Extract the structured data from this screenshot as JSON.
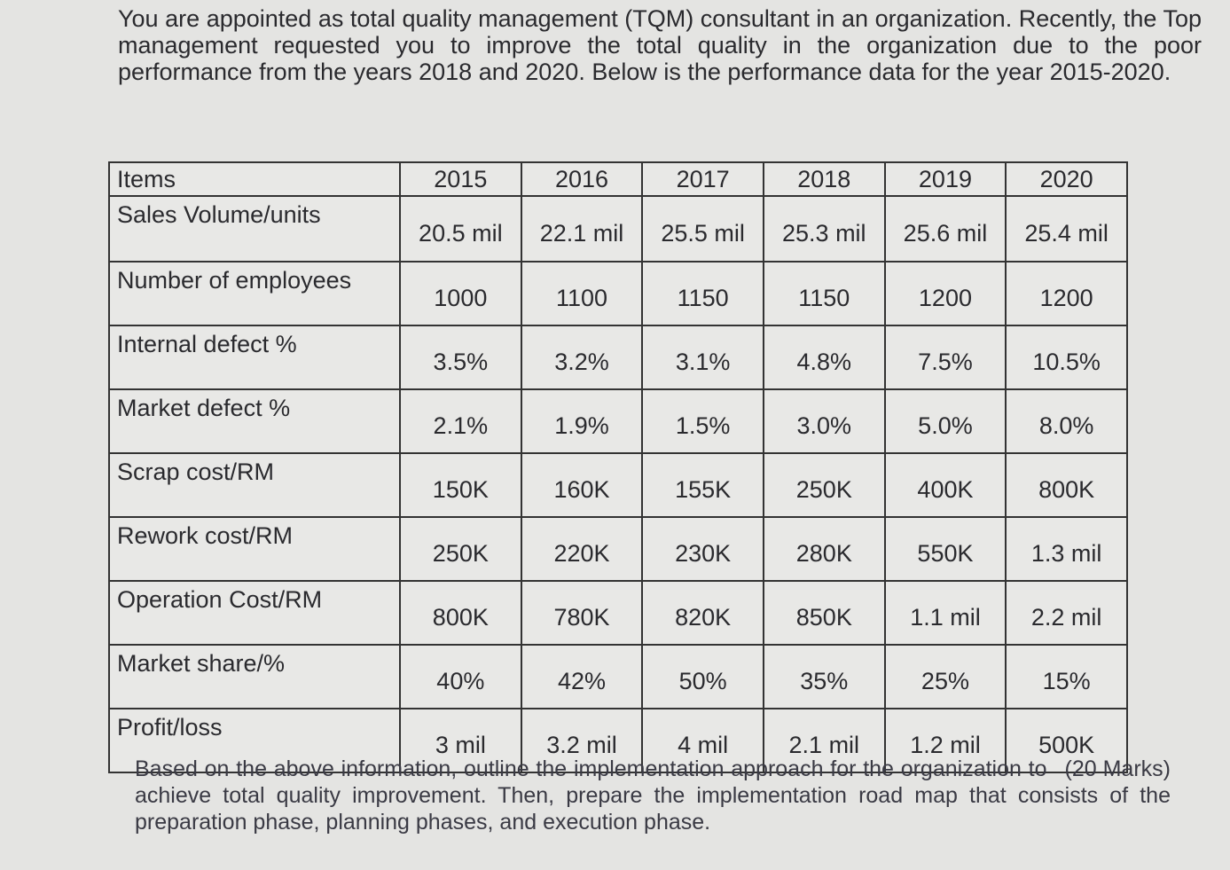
{
  "intro": "You are appointed as total quality management (TQM) consultant in an organization. Recently, the Top management requested you to improve the total quality in the organization due to the poor performance from the years 2018 and 2020. Below is the performance data for the year 2015-2020.",
  "table": {
    "header_label": "Items",
    "years": [
      "2015",
      "2016",
      "2017",
      "2018",
      "2019",
      "2020"
    ],
    "rows": [
      {
        "label": "Sales Volume/units",
        "values": [
          "20.5 mil",
          "22.1 mil",
          "25.5 mil",
          "25.3 mil",
          "25.6 mil",
          "25.4 mil"
        ]
      },
      {
        "label": "Number of employees",
        "values": [
          "1000",
          "1100",
          "1150",
          "1150",
          "1200",
          "1200"
        ]
      },
      {
        "label": "Internal defect %",
        "values": [
          "3.5%",
          "3.2%",
          "3.1%",
          "4.8%",
          "7.5%",
          "10.5%"
        ]
      },
      {
        "label": "Market defect %",
        "values": [
          "2.1%",
          "1.9%",
          "1.5%",
          "3.0%",
          "5.0%",
          "8.0%"
        ]
      },
      {
        "label": "Scrap cost/RM",
        "values": [
          "150K",
          "160K",
          "155K",
          "250K",
          "400K",
          "800K"
        ]
      },
      {
        "label": "Rework cost/RM",
        "values": [
          "250K",
          "220K",
          "230K",
          "280K",
          "550K",
          "1.3 mil"
        ]
      },
      {
        "label": "Operation Cost/RM",
        "values": [
          "800K",
          "780K",
          "820K",
          "850K",
          "1.1 mil",
          "2.2 mil"
        ]
      },
      {
        "label": "Market share/%",
        "values": [
          "40%",
          "42%",
          "50%",
          "35%",
          "25%",
          "15%"
        ]
      },
      {
        "label": "Profit/loss",
        "values": [
          "3 mil",
          "3.2 mil",
          "4 mil",
          "2.1 mil",
          "1.2 mil",
          "500K"
        ]
      }
    ]
  },
  "question": "Based on the above information, outline the implementation approach for the organization to achieve total quality improvement. Then, prepare the implementation road map that consists of the preparation phase, planning phases, and execution phase.",
  "marks": "(20 Marks)"
}
